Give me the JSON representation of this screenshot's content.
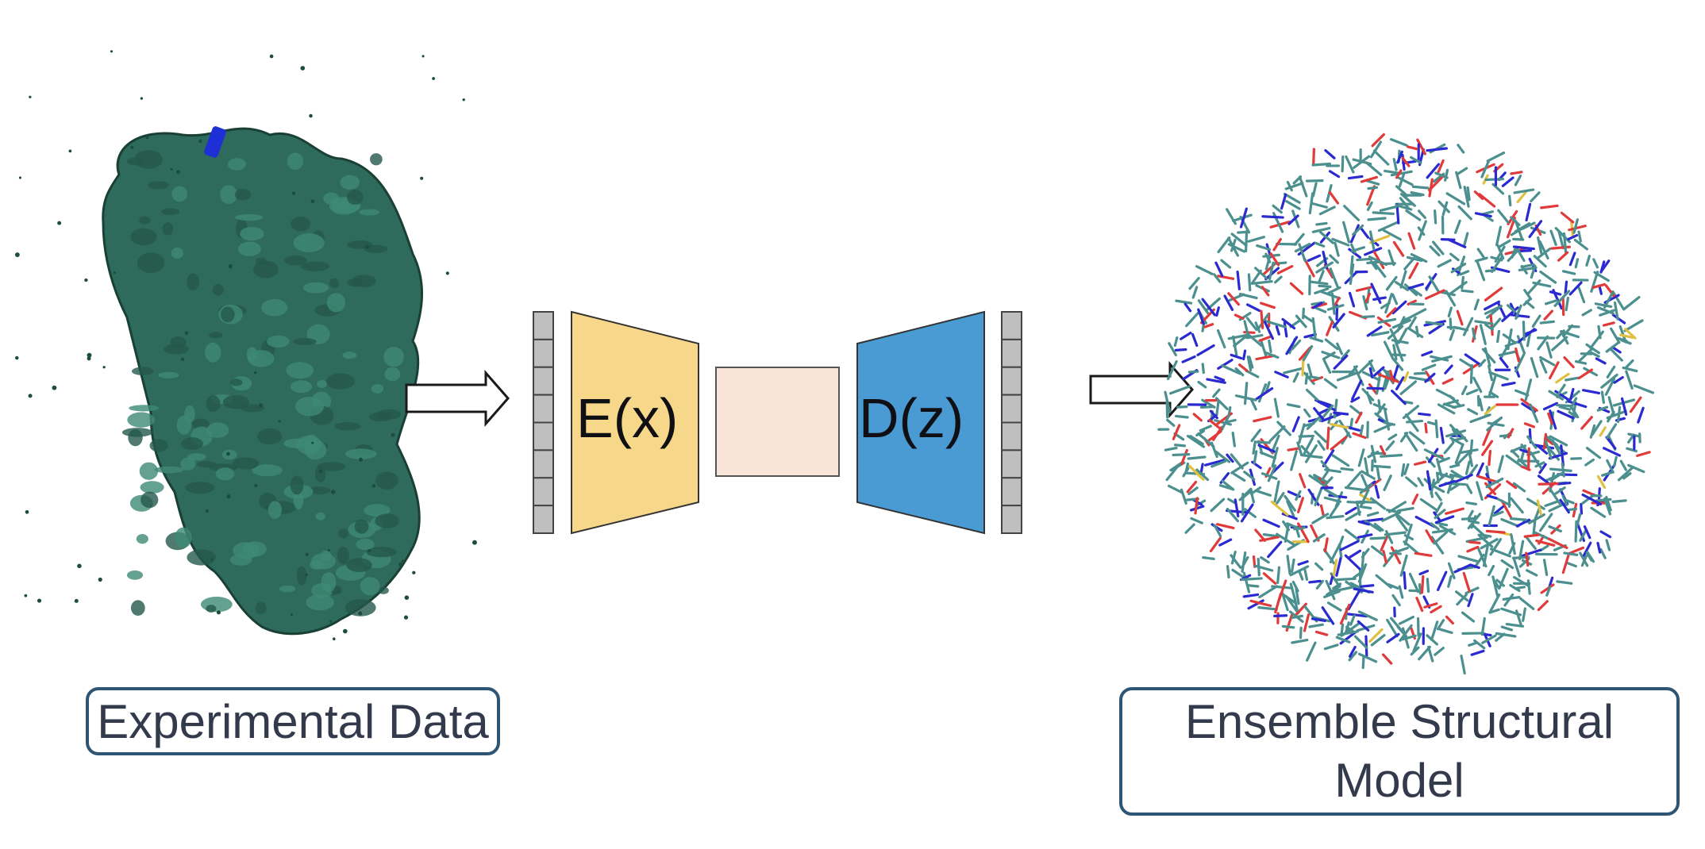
{
  "experimental_label": "Experimental Data",
  "ensemble_label": "Ensemble Structural Model",
  "encoder_label": "E(x)",
  "decoder_label": "D(z)",
  "colors": {
    "density_map": "#2e6b5c",
    "density_edge": "#1a4036",
    "encoder": "#f7d88a",
    "latent": "#f8e4d8",
    "decoder": "#4a9ad4",
    "vector_cell": "#bfbfbf",
    "label_border": "#2f5574",
    "atom_carbon": "#4c8f8f",
    "atom_nitrogen": "#2a2ad0",
    "atom_oxygen": "#e03a3a",
    "atom_sulfur": "#e0c040"
  },
  "icons": [
    "density-map",
    "arrow-right",
    "input-vector",
    "encoder",
    "latent-space",
    "decoder",
    "output-vector",
    "protein-structure"
  ]
}
